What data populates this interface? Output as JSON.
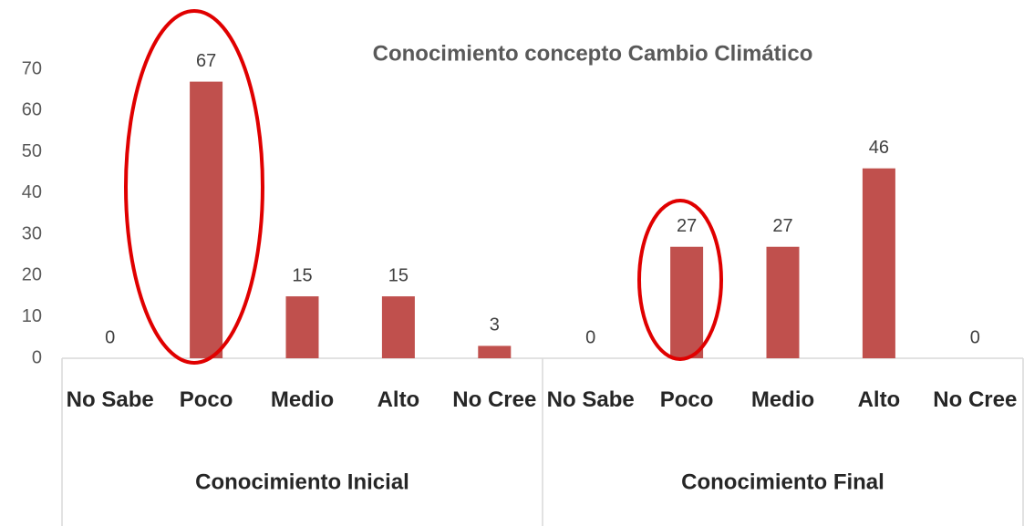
{
  "chart_data": {
    "type": "bar",
    "title": "Conocimiento concepto Cambio Climático",
    "groups": [
      {
        "label": "Conocimiento Inicial",
        "categories": [
          "No Sabe",
          "Poco",
          "Medio",
          "Alto",
          "No Cree"
        ],
        "values": [
          0,
          67,
          15,
          15,
          3
        ]
      },
      {
        "label": "Conocimiento Final",
        "categories": [
          "No Sabe",
          "Poco",
          "Medio",
          "Alto",
          "No Cree"
        ],
        "values": [
          0,
          27,
          27,
          46,
          0
        ]
      }
    ],
    "color": "#c0504d",
    "ylim": [
      0,
      70
    ],
    "yticks": [
      0,
      10,
      20,
      30,
      40,
      50,
      60,
      70
    ],
    "grid": false
  }
}
